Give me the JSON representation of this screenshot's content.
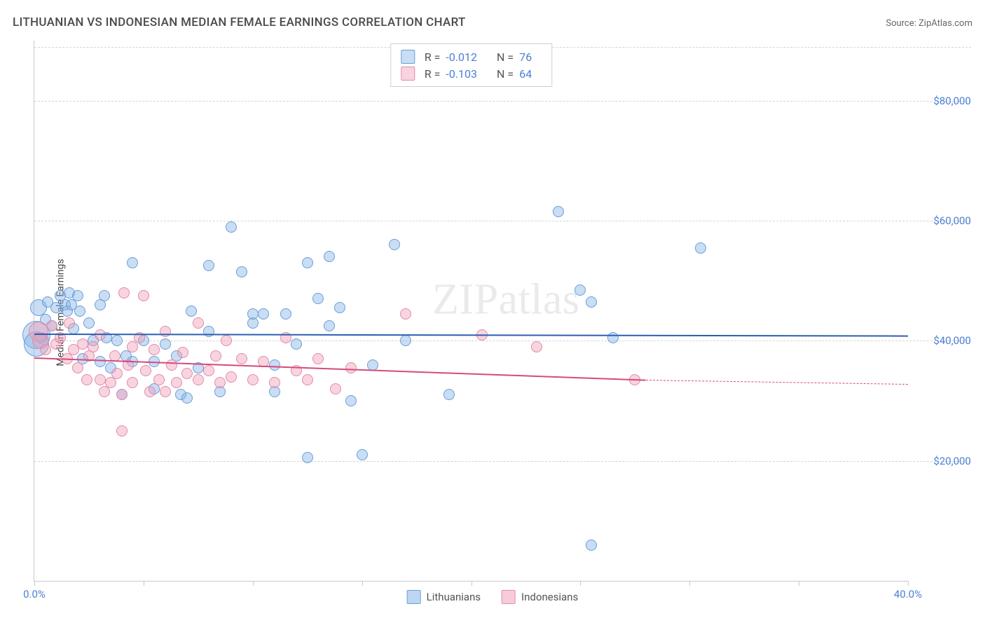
{
  "title": "LITHUANIAN VS INDONESIAN MEDIAN FEMALE EARNINGS CORRELATION CHART",
  "source": "Source: ZipAtlas.com",
  "ylabel": "Median Female Earnings",
  "watermark": "ZIPatlas",
  "chart": {
    "type": "scatter",
    "xlim": [
      0.0,
      40.0
    ],
    "ylim": [
      0,
      90000
    ],
    "xticks": [
      0.0,
      5.0,
      10.0,
      15.0,
      20.0,
      25.0,
      30.0,
      35.0,
      40.0
    ],
    "xtick_labels": {
      "0": "0.0%",
      "40": "40.0%"
    },
    "yticks": [
      20000,
      40000,
      60000,
      80000
    ],
    "ytick_labels": [
      "$20,000",
      "$40,000",
      "$60,000",
      "$80,000"
    ],
    "background_color": "#ffffff",
    "grid_color": "#d5d5d5",
    "grid_dash": true,
    "axis_color": "#c9c9c9",
    "tick_label_color": "#4a7fd6",
    "point_radius": 8,
    "point_stroke_width": 1.2
  },
  "series": [
    {
      "name": "Lithuanians",
      "fill_color": "rgba(135,180,230,0.45)",
      "stroke_color": "#6a9fd8",
      "trend_color": "#2b5fb0",
      "trend_width": 2.5,
      "R": "-0.012",
      "N": "76",
      "trend": {
        "y_start": 41200,
        "y_end": 40900,
        "x_start": 0.0,
        "x_end": 40.0
      },
      "points": [
        {
          "x": 0.1,
          "y": 41000,
          "r": 20
        },
        {
          "x": 0.1,
          "y": 39500,
          "r": 18
        },
        {
          "x": 0.2,
          "y": 45500,
          "r": 12
        },
        {
          "x": 0.3,
          "y": 40500
        },
        {
          "x": 0.5,
          "y": 43500
        },
        {
          "x": 0.6,
          "y": 46500
        },
        {
          "x": 0.8,
          "y": 42500
        },
        {
          "x": 1.0,
          "y": 45500
        },
        {
          "x": 1.2,
          "y": 47500
        },
        {
          "x": 1.4,
          "y": 46000
        },
        {
          "x": 1.5,
          "y": 45000
        },
        {
          "x": 1.6,
          "y": 48000
        },
        {
          "x": 1.7,
          "y": 46000
        },
        {
          "x": 1.8,
          "y": 42000
        },
        {
          "x": 2.0,
          "y": 47500
        },
        {
          "x": 2.1,
          "y": 45000
        },
        {
          "x": 2.2,
          "y": 37000
        },
        {
          "x": 2.5,
          "y": 43000
        },
        {
          "x": 2.7,
          "y": 40000
        },
        {
          "x": 3.0,
          "y": 46000
        },
        {
          "x": 3.0,
          "y": 36500
        },
        {
          "x": 3.2,
          "y": 47500
        },
        {
          "x": 3.3,
          "y": 40500
        },
        {
          "x": 3.5,
          "y": 35500
        },
        {
          "x": 3.8,
          "y": 40000
        },
        {
          "x": 4.0,
          "y": 31000
        },
        {
          "x": 4.2,
          "y": 37500
        },
        {
          "x": 4.5,
          "y": 53000
        },
        {
          "x": 4.5,
          "y": 36500
        },
        {
          "x": 5.0,
          "y": 40000
        },
        {
          "x": 5.5,
          "y": 36500
        },
        {
          "x": 5.5,
          "y": 32000
        },
        {
          "x": 6.0,
          "y": 39500
        },
        {
          "x": 6.5,
          "y": 37500
        },
        {
          "x": 6.7,
          "y": 31000
        },
        {
          "x": 7.0,
          "y": 30500
        },
        {
          "x": 7.2,
          "y": 45000
        },
        {
          "x": 7.5,
          "y": 35500
        },
        {
          "x": 8.0,
          "y": 52500
        },
        {
          "x": 8.0,
          "y": 41500
        },
        {
          "x": 8.5,
          "y": 31500
        },
        {
          "x": 9.0,
          "y": 59000
        },
        {
          "x": 9.5,
          "y": 51500
        },
        {
          "x": 10.0,
          "y": 43000
        },
        {
          "x": 10.0,
          "y": 44500
        },
        {
          "x": 10.5,
          "y": 44500
        },
        {
          "x": 11.0,
          "y": 36000
        },
        {
          "x": 11.0,
          "y": 31500
        },
        {
          "x": 11.5,
          "y": 44500
        },
        {
          "x": 12.0,
          "y": 39500
        },
        {
          "x": 12.5,
          "y": 53000
        },
        {
          "x": 12.5,
          "y": 20500
        },
        {
          "x": 13.0,
          "y": 47000
        },
        {
          "x": 13.5,
          "y": 54000
        },
        {
          "x": 13.5,
          "y": 42500
        },
        {
          "x": 14.0,
          "y": 45500
        },
        {
          "x": 14.5,
          "y": 30000
        },
        {
          "x": 15.0,
          "y": 21000
        },
        {
          "x": 15.5,
          "y": 36000
        },
        {
          "x": 16.5,
          "y": 56000
        },
        {
          "x": 17.0,
          "y": 40000
        },
        {
          "x": 19.0,
          "y": 31000
        },
        {
          "x": 24.0,
          "y": 61500
        },
        {
          "x": 25.0,
          "y": 48500
        },
        {
          "x": 25.5,
          "y": 46500
        },
        {
          "x": 25.5,
          "y": 6000
        },
        {
          "x": 26.5,
          "y": 40500
        },
        {
          "x": 30.5,
          "y": 55500
        }
      ]
    },
    {
      "name": "Indonesians",
      "fill_color": "rgba(240,160,185,0.45)",
      "stroke_color": "#e38aac",
      "trend_color": "#d64a7b",
      "trend_width": 2.5,
      "R": "-0.103",
      "N": "64",
      "trend": {
        "y_start": 37200,
        "y_end": 33500,
        "x_start": 0.0,
        "x_end": 28.0
      },
      "trend_dash": {
        "y_start": 33500,
        "y_end": 32800,
        "x_start": 28.0,
        "x_end": 40.0
      },
      "points": [
        {
          "x": 0.2,
          "y": 41500,
          "r": 14
        },
        {
          "x": 0.3,
          "y": 40000,
          "r": 12
        },
        {
          "x": 0.5,
          "y": 38500
        },
        {
          "x": 0.8,
          "y": 42500
        },
        {
          "x": 1.0,
          "y": 39500
        },
        {
          "x": 1.2,
          "y": 40500
        },
        {
          "x": 1.5,
          "y": 37000
        },
        {
          "x": 1.6,
          "y": 43000
        },
        {
          "x": 1.8,
          "y": 38500
        },
        {
          "x": 2.0,
          "y": 35500
        },
        {
          "x": 2.2,
          "y": 39500
        },
        {
          "x": 2.4,
          "y": 33500
        },
        {
          "x": 2.5,
          "y": 37500
        },
        {
          "x": 2.7,
          "y": 39000
        },
        {
          "x": 3.0,
          "y": 33500
        },
        {
          "x": 3.0,
          "y": 41000
        },
        {
          "x": 3.2,
          "y": 31500
        },
        {
          "x": 3.5,
          "y": 33000
        },
        {
          "x": 3.7,
          "y": 37500
        },
        {
          "x": 3.8,
          "y": 34500
        },
        {
          "x": 4.0,
          "y": 31000
        },
        {
          "x": 4.0,
          "y": 25000
        },
        {
          "x": 4.1,
          "y": 48000
        },
        {
          "x": 4.3,
          "y": 36000
        },
        {
          "x": 4.5,
          "y": 39000
        },
        {
          "x": 4.5,
          "y": 33000
        },
        {
          "x": 4.8,
          "y": 40500
        },
        {
          "x": 5.0,
          "y": 47500
        },
        {
          "x": 5.1,
          "y": 35000
        },
        {
          "x": 5.3,
          "y": 31500
        },
        {
          "x": 5.5,
          "y": 38500
        },
        {
          "x": 5.7,
          "y": 33500
        },
        {
          "x": 6.0,
          "y": 41500
        },
        {
          "x": 6.0,
          "y": 31500
        },
        {
          "x": 6.3,
          "y": 36000
        },
        {
          "x": 6.5,
          "y": 33000
        },
        {
          "x": 6.8,
          "y": 38000
        },
        {
          "x": 7.0,
          "y": 34500
        },
        {
          "x": 7.5,
          "y": 33500
        },
        {
          "x": 7.5,
          "y": 43000
        },
        {
          "x": 8.0,
          "y": 35000
        },
        {
          "x": 8.3,
          "y": 37500
        },
        {
          "x": 8.5,
          "y": 33000
        },
        {
          "x": 8.8,
          "y": 40000
        },
        {
          "x": 9.0,
          "y": 34000
        },
        {
          "x": 9.5,
          "y": 37000
        },
        {
          "x": 10.0,
          "y": 33500
        },
        {
          "x": 10.5,
          "y": 36500
        },
        {
          "x": 11.0,
          "y": 33000
        },
        {
          "x": 11.5,
          "y": 40500
        },
        {
          "x": 12.0,
          "y": 35000
        },
        {
          "x": 12.5,
          "y": 33500
        },
        {
          "x": 13.0,
          "y": 37000
        },
        {
          "x": 13.8,
          "y": 32000
        },
        {
          "x": 14.5,
          "y": 35500
        },
        {
          "x": 17.0,
          "y": 44500
        },
        {
          "x": 20.5,
          "y": 41000
        },
        {
          "x": 23.0,
          "y": 39000
        },
        {
          "x": 27.5,
          "y": 33500
        }
      ]
    }
  ],
  "legend_bottom": [
    {
      "label": "Lithuanians",
      "fill": "rgba(135,180,230,0.55)",
      "stroke": "#6a9fd8"
    },
    {
      "label": "Indonesians",
      "fill": "rgba(240,160,185,0.55)",
      "stroke": "#e38aac"
    }
  ]
}
